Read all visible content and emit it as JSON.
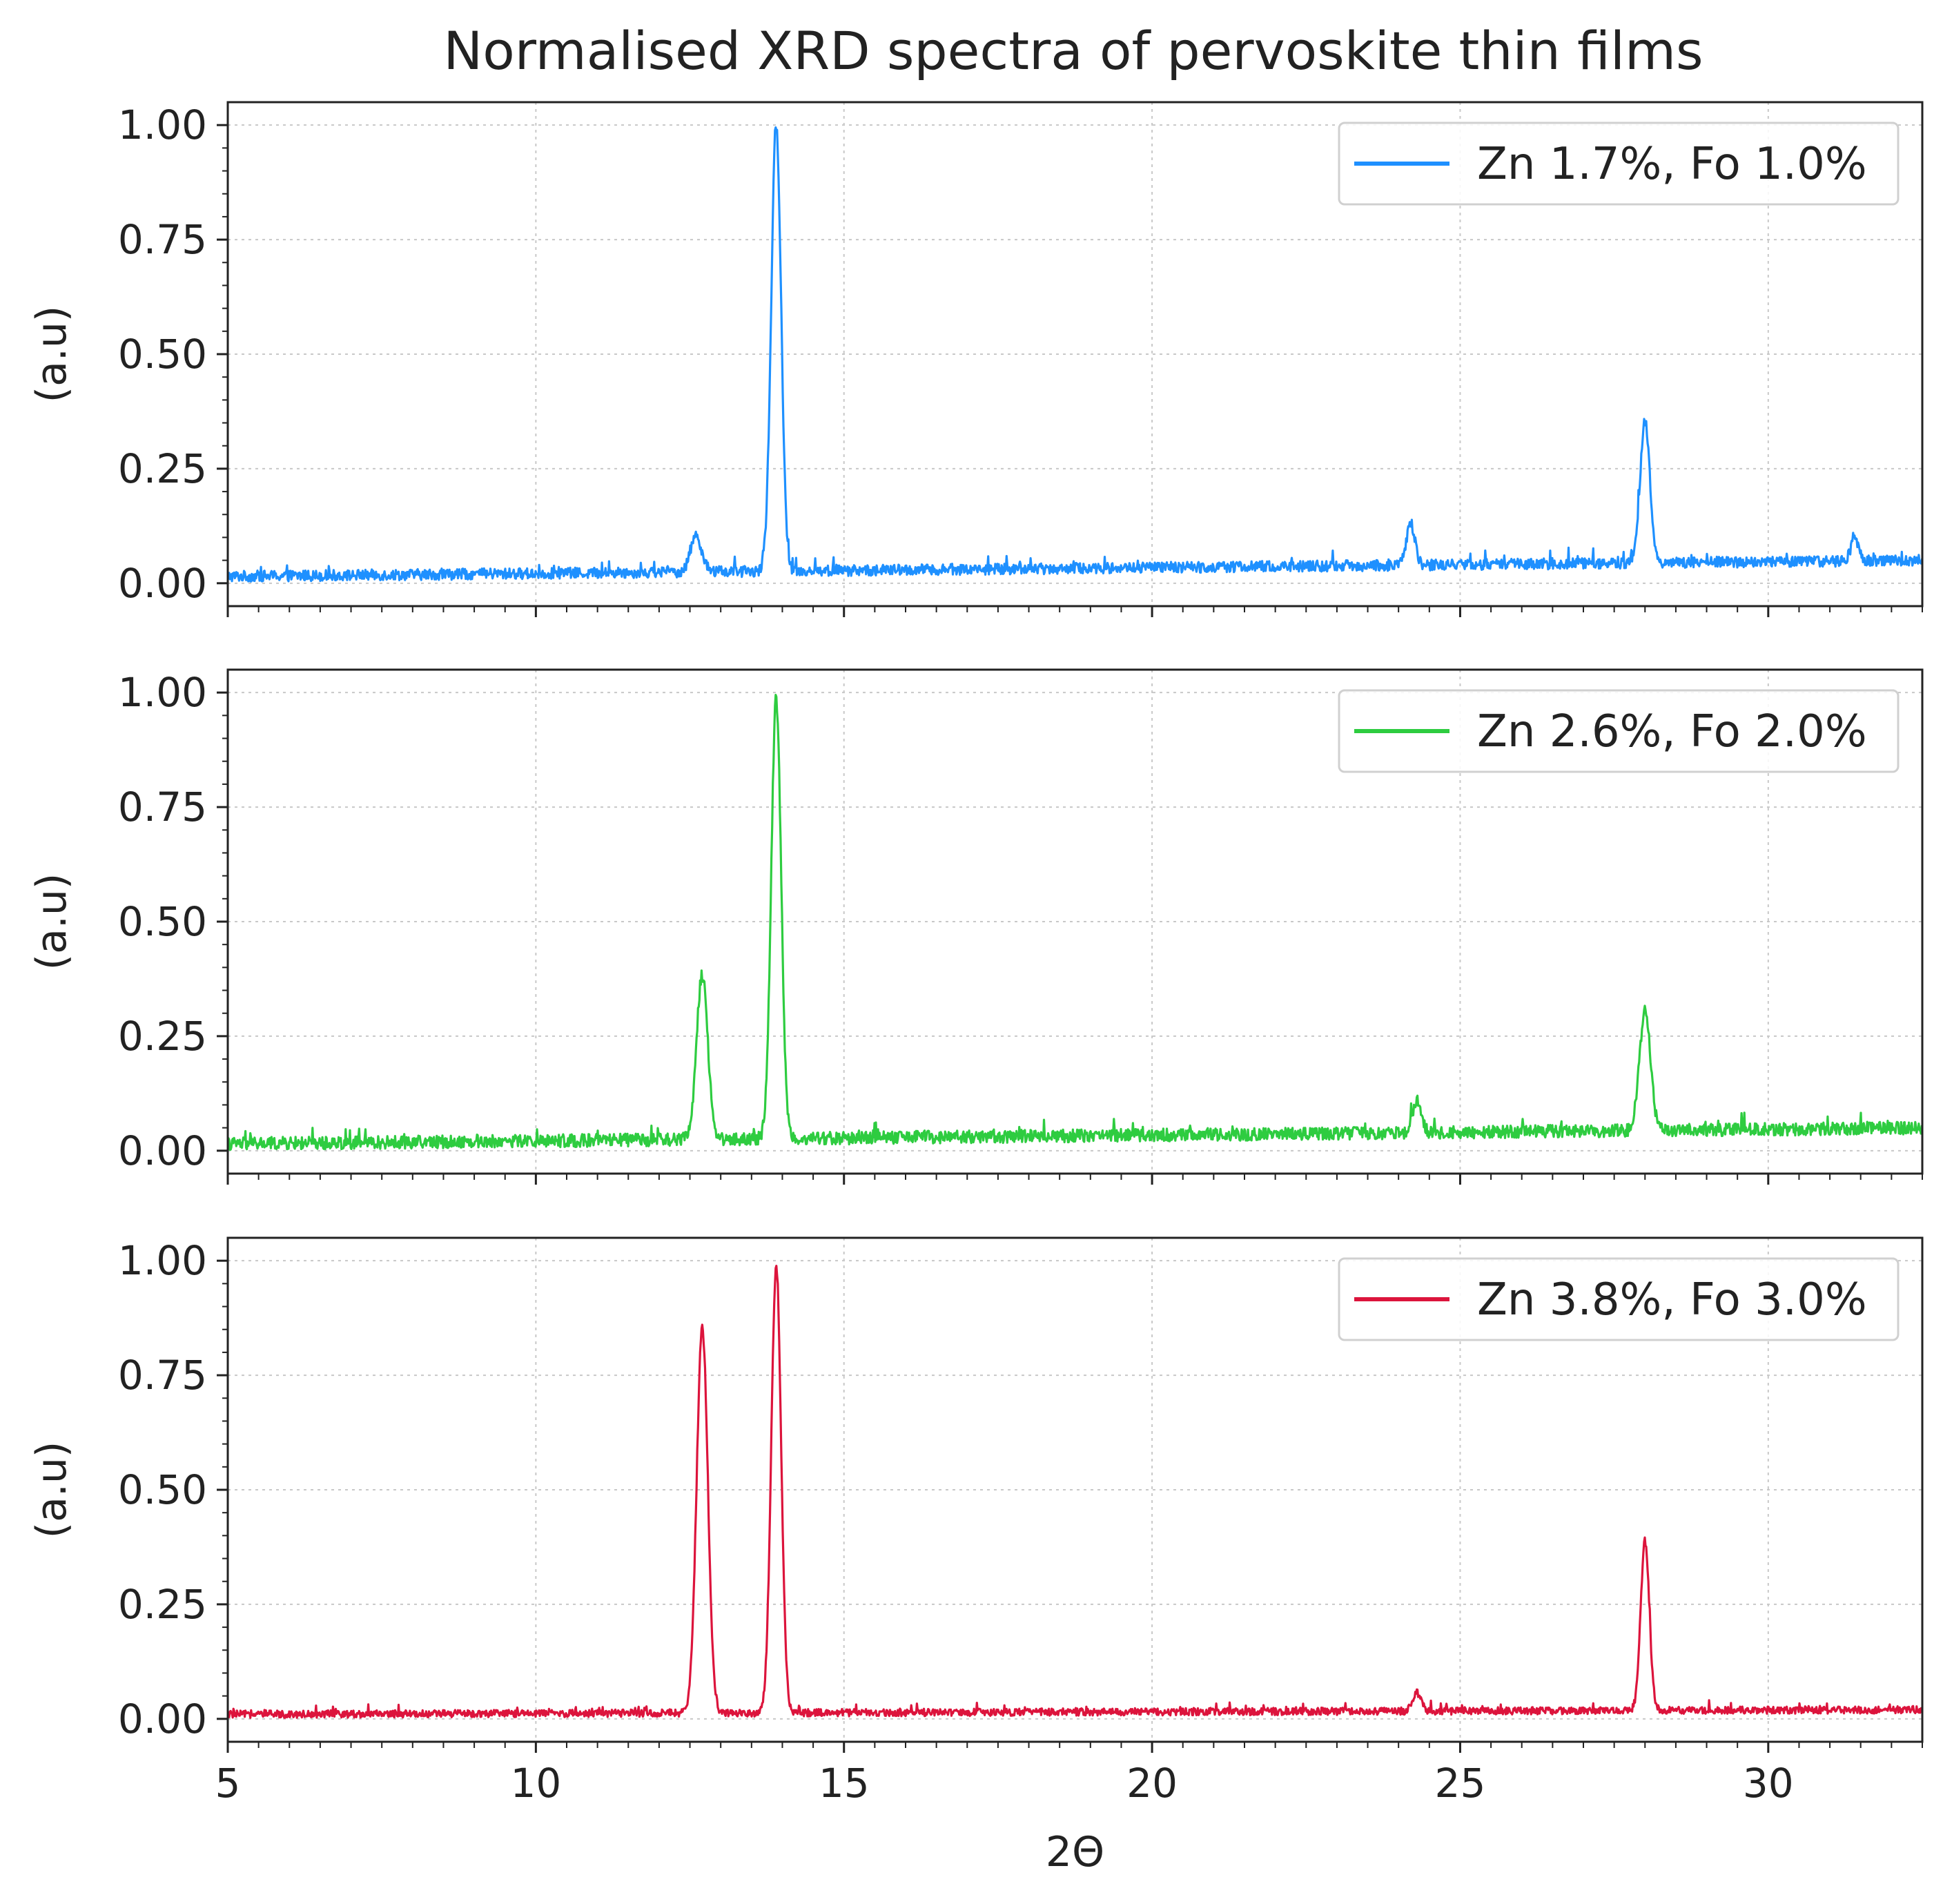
{
  "chart_data": [
    {
      "type": "line",
      "title": "Normalised XRD spectra of pervoskite thin films",
      "xlabel": "",
      "ylabel": "(a.u)",
      "xlim": [
        5,
        32.5
      ],
      "ylim": [
        -0.05,
        1.05
      ],
      "x_ticks": [
        "5",
        "10",
        "15",
        "20",
        "25",
        "30"
      ],
      "y_ticks": [
        "0.00",
        "0.25",
        "0.50",
        "0.75",
        "1.00"
      ],
      "grid": true,
      "legend_position": "top-right",
      "series": [
        {
          "name": "Zn 1.7%, Fo 1.0%",
          "color": "#1e90ff",
          "baseline_start": 0.015,
          "baseline_end": 0.05,
          "noise": 0.012,
          "peaks": [
            {
              "x": 12.6,
              "height": 0.08,
              "width": 0.09
            },
            {
              "x": 13.9,
              "height": 0.97,
              "width": 0.08
            },
            {
              "x": 24.2,
              "height": 0.09,
              "width": 0.07
            },
            {
              "x": 28.0,
              "height": 0.31,
              "width": 0.08
            },
            {
              "x": 31.4,
              "height": 0.05,
              "width": 0.06
            }
          ]
        }
      ]
    },
    {
      "type": "line",
      "title": "",
      "xlabel": "",
      "ylabel": "(a.u)",
      "xlim": [
        5,
        32.5
      ],
      "ylim": [
        -0.05,
        1.05
      ],
      "x_ticks": [
        "5",
        "10",
        "15",
        "20",
        "25",
        "30"
      ],
      "y_ticks": [
        "0.00",
        "0.25",
        "0.50",
        "0.75",
        "1.00"
      ],
      "grid": true,
      "legend_position": "top-right",
      "series": [
        {
          "name": "Zn 2.6%, Fo 2.0%",
          "color": "#2ecc40",
          "baseline_start": 0.015,
          "baseline_end": 0.05,
          "noise": 0.014,
          "peaks": [
            {
              "x": 12.7,
              "height": 0.36,
              "width": 0.09
            },
            {
              "x": 13.9,
              "height": 0.96,
              "width": 0.08
            },
            {
              "x": 24.3,
              "height": 0.07,
              "width": 0.07
            },
            {
              "x": 28.0,
              "height": 0.26,
              "width": 0.09
            }
          ]
        }
      ]
    },
    {
      "type": "line",
      "title": "",
      "xlabel": "2Θ",
      "ylabel": "(a.u)",
      "xlim": [
        5,
        32.5
      ],
      "ylim": [
        -0.05,
        1.05
      ],
      "x_ticks": [
        "5",
        "10",
        "15",
        "20",
        "25",
        "30"
      ],
      "y_ticks": [
        "0.00",
        "0.25",
        "0.50",
        "0.75",
        "1.00"
      ],
      "grid": true,
      "legend_position": "top-right",
      "series": [
        {
          "name": "Zn 3.8%, Fo 3.0%",
          "color": "#dc143c",
          "baseline_start": 0.01,
          "baseline_end": 0.02,
          "noise": 0.008,
          "peaks": [
            {
              "x": 12.7,
              "height": 0.84,
              "width": 0.09
            },
            {
              "x": 13.9,
              "height": 0.97,
              "width": 0.08
            },
            {
              "x": 24.3,
              "height": 0.04,
              "width": 0.07
            },
            {
              "x": 28.0,
              "height": 0.37,
              "width": 0.07
            }
          ]
        }
      ]
    }
  ]
}
